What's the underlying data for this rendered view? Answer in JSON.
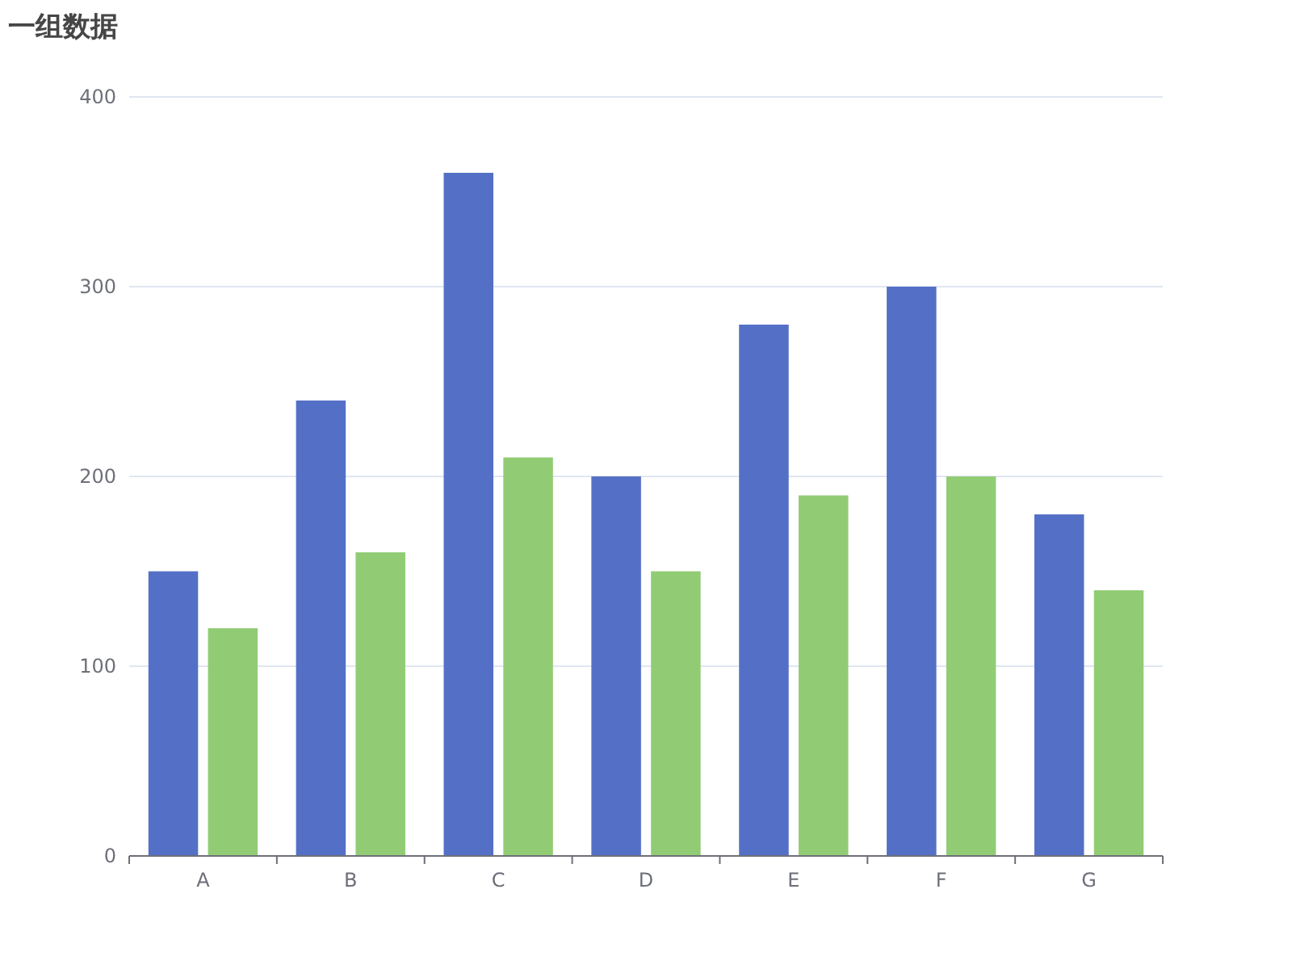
{
  "chart_data": {
    "type": "bar",
    "title": "一组数据",
    "categories": [
      "A",
      "B",
      "C",
      "D",
      "E",
      "F",
      "G"
    ],
    "series": [
      {
        "color": "#5470c6",
        "values": [
          150,
          240,
          360,
          200,
          280,
          300,
          180
        ]
      },
      {
        "color": "#91cc75",
        "values": [
          120,
          160,
          210,
          150,
          190,
          200,
          140
        ]
      }
    ],
    "ylim": [
      0,
      400
    ],
    "yticks": [
      0,
      100,
      200,
      300,
      400
    ],
    "grid": "y"
  }
}
